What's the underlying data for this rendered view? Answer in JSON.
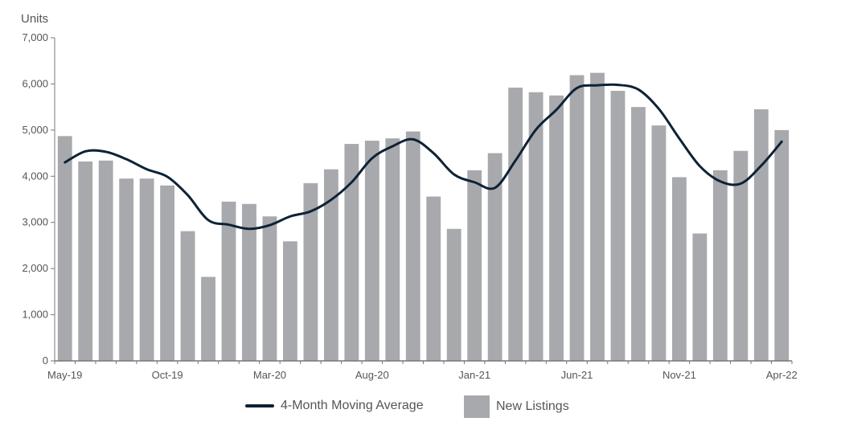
{
  "colors": {
    "bars": "#a8a9ad",
    "line": "#0d2235",
    "axis": "#777777"
  },
  "chart_data": {
    "type": "bar",
    "ylabel": "Units",
    "ylim": [
      0,
      7000
    ],
    "yticks": [
      "0",
      "1,000",
      "2,000",
      "3,000",
      "4,000",
      "5,000",
      "6,000",
      "7,000"
    ],
    "categories": [
      "May-19",
      "Jun-19",
      "Jul-19",
      "Aug-19",
      "Sep-19",
      "Oct-19",
      "Nov-19",
      "Dec-19",
      "Jan-20",
      "Feb-20",
      "Mar-20",
      "Apr-20",
      "May-20",
      "Jun-20",
      "Jul-20",
      "Aug-20",
      "Sep-20",
      "Oct-20",
      "Nov-20",
      "Dec-20",
      "Jan-21",
      "Feb-21",
      "Mar-21",
      "Apr-21",
      "May-21",
      "Jun-21",
      "Jul-21",
      "Aug-21",
      "Sep-21",
      "Oct-21",
      "Nov-21",
      "Dec-21",
      "Jan-22",
      "Feb-22",
      "Mar-22",
      "Apr-22"
    ],
    "xtick_labels": [
      "May-19",
      "Oct-19",
      "Mar-20",
      "Aug-20",
      "Jan-21",
      "Jun-21",
      "Nov-21",
      "Apr-22"
    ],
    "series": [
      {
        "name": "New Listings",
        "type": "bar",
        "values": [
          4870,
          4320,
          4340,
          3950,
          3950,
          3800,
          2810,
          1820,
          3450,
          3400,
          3130,
          2590,
          3850,
          4150,
          4700,
          4770,
          4820,
          4970,
          3560,
          2860,
          4130,
          4500,
          5920,
          5820,
          5750,
          6190,
          6240,
          5850,
          5500,
          5100,
          3980,
          2760,
          4130,
          4550,
          5450,
          5000
        ]
      },
      {
        "name": "4-Month Moving Average",
        "type": "line",
        "values": [
          4300,
          4540,
          4530,
          4370,
          4150,
          3990,
          3590,
          3050,
          2950,
          2860,
          2940,
          3130,
          3240,
          3490,
          3870,
          4390,
          4650,
          4800,
          4500,
          4040,
          3870,
          3750,
          4340,
          5010,
          5440,
          5910,
          5970,
          5980,
          5880,
          5460,
          4820,
          4220,
          3890,
          3840,
          4230,
          4750
        ]
      }
    ],
    "legend": [
      "4-Month Moving Average",
      "New Listings"
    ],
    "legend_position": "bottom"
  }
}
